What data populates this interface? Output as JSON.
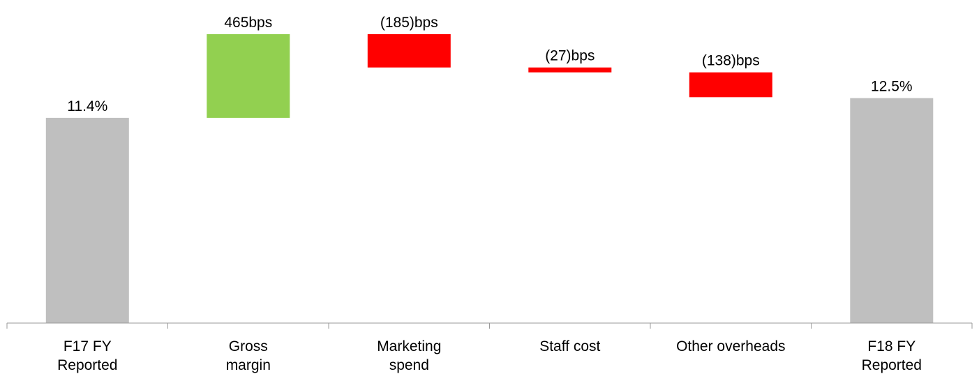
{
  "chart_data": {
    "type": "bar",
    "subtype": "waterfall",
    "unit": "percent",
    "categories": [
      [
        "F17 FY",
        "Reported"
      ],
      [
        "Gross",
        "margin"
      ],
      [
        "Marketing",
        "spend"
      ],
      [
        "Staff cost"
      ],
      [
        "Other overheads"
      ],
      [
        "F18 FY",
        "Reported"
      ]
    ],
    "bars": [
      {
        "kind": "total",
        "start": 0,
        "end": 11.4,
        "label": "11.4%",
        "color": "#bfbfbf"
      },
      {
        "kind": "delta",
        "start": 11.4,
        "end": 16.05,
        "label": "465bps",
        "color": "#92d050"
      },
      {
        "kind": "delta",
        "start": 16.05,
        "end": 14.2,
        "label": "(185)bps",
        "color": "#ff0000"
      },
      {
        "kind": "delta",
        "start": 14.2,
        "end": 13.93,
        "label": "(27)bps",
        "color": "#ff0000"
      },
      {
        "kind": "delta",
        "start": 13.93,
        "end": 12.55,
        "label": "(138)bps",
        "color": "#ff0000"
      },
      {
        "kind": "total",
        "start": 0,
        "end": 12.5,
        "label": "12.5%",
        "color": "#bfbfbf"
      }
    ],
    "title": "",
    "xlabel": "",
    "ylabel": "",
    "ylim": [
      0,
      16.05
    ],
    "grid": false,
    "legend": "none"
  }
}
